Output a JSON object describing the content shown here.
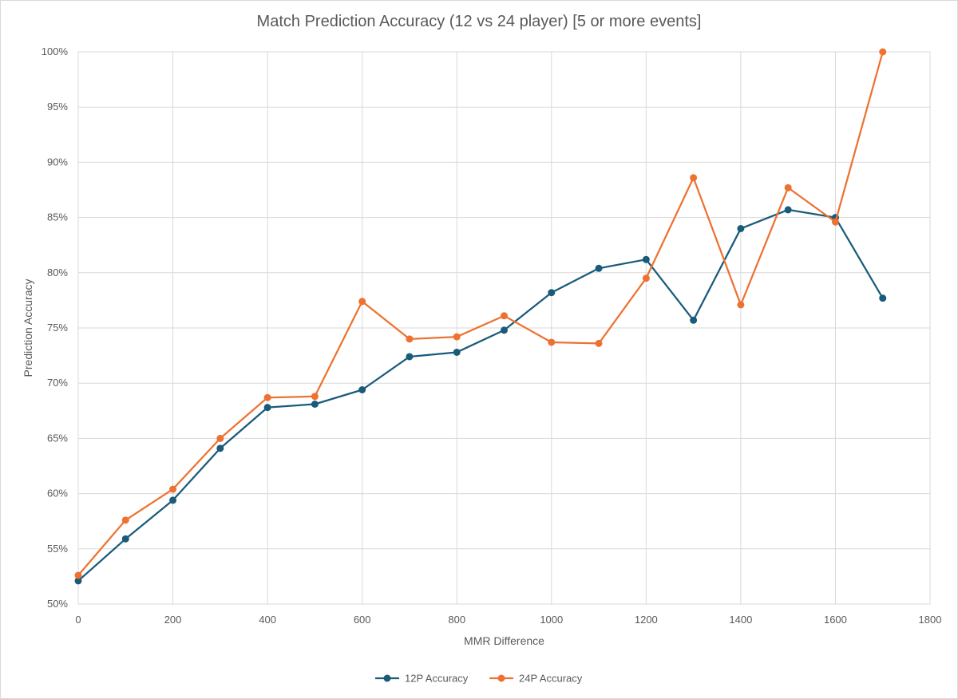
{
  "chart_data": {
    "type": "line",
    "title": "Match Prediction Accuracy (12 vs 24 player) [5 or more events]",
    "xlabel": "MMR Difference",
    "ylabel": "Prediction Accuracy",
    "xlim": [
      0,
      1800
    ],
    "ylim": [
      0.5,
      1.0
    ],
    "x_ticks": [
      0,
      200,
      400,
      600,
      800,
      1000,
      1200,
      1400,
      1600,
      1800
    ],
    "y_ticks": [
      "50%",
      "55%",
      "60%",
      "65%",
      "70%",
      "75%",
      "80%",
      "85%",
      "90%",
      "95%",
      "100%"
    ],
    "grid": true,
    "legend_position": "bottom",
    "series": [
      {
        "name": "12P Accuracy",
        "color": "#1a5b7a",
        "x": [
          0,
          100,
          200,
          300,
          400,
          500,
          600,
          700,
          800,
          900,
          1000,
          1100,
          1200,
          1300,
          1400,
          1500,
          1600,
          1700
        ],
        "y": [
          0.521,
          0.559,
          0.594,
          0.641,
          0.678,
          0.681,
          0.694,
          0.724,
          0.728,
          0.748,
          0.782,
          0.804,
          0.812,
          0.757,
          0.84,
          0.857,
          0.85,
          0.777
        ]
      },
      {
        "name": "24P Accuracy",
        "color": "#ed7232",
        "x": [
          0,
          100,
          200,
          300,
          400,
          500,
          600,
          700,
          800,
          900,
          1000,
          1100,
          1200,
          1300,
          1400,
          1500,
          1600,
          1700
        ],
        "y": [
          0.526,
          0.576,
          0.604,
          0.65,
          0.687,
          0.688,
          0.774,
          0.74,
          0.742,
          0.761,
          0.737,
          0.736,
          0.795,
          0.886,
          0.771,
          0.877,
          0.846,
          1.0
        ]
      }
    ]
  }
}
